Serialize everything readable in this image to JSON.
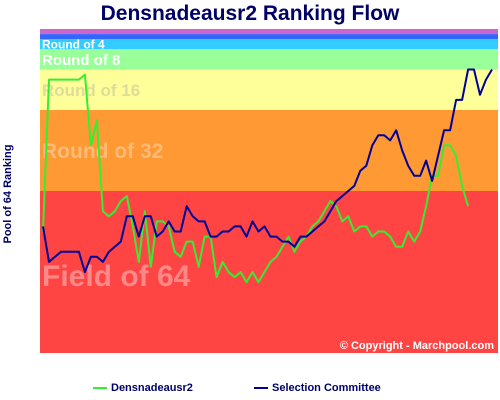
{
  "chart_data": {
    "type": "line",
    "title": "Densnadeausr2 Ranking Flow",
    "xlabel": "",
    "ylabel": "Pool of 64 Ranking",
    "ylim": [
      64,
      0
    ],
    "grid": false,
    "legend_placement": "bottom",
    "copyright": "© Copyright - Marchpool.com",
    "zones": [
      {
        "label": "Field of 64",
        "from": 32,
        "to": 64,
        "color": "#ff4444",
        "label_color": "#ff8888"
      },
      {
        "label": "Round of 32",
        "from": 16,
        "to": 32,
        "color": "#ff9933",
        "label_color": "#ffbb77"
      },
      {
        "label": "Round of 16",
        "from": 8,
        "to": 16,
        "color": "#ffff99",
        "label_color": "#dddd99"
      },
      {
        "label": "Round of 8",
        "from": 4,
        "to": 8,
        "color": "#99ff99",
        "label_color": "#ffffff"
      },
      {
        "label": "Round of 4",
        "from": 2,
        "to": 4,
        "color": "#33ccff",
        "label_color": "#ffffff"
      },
      {
        "label": "",
        "from": 1,
        "to": 2,
        "color": "#3366ff",
        "label_color": "#ffffff"
      },
      {
        "label": "",
        "from": 0,
        "to": 1,
        "color": "#cc66cc",
        "label_color": "#ffffff"
      }
    ],
    "series": [
      {
        "name": "Densnadeausr2",
        "color": "#33ee33",
        "values": [
          40,
          10,
          10,
          10,
          10,
          10,
          10,
          9,
          23,
          18,
          36,
          37,
          36,
          34,
          33,
          39,
          46,
          36,
          47,
          38,
          38,
          39,
          44,
          45,
          42,
          42,
          47,
          41,
          41,
          49,
          46,
          48,
          49,
          48,
          50,
          48,
          50,
          48,
          46,
          45,
          43,
          41,
          44,
          42,
          41,
          39,
          38,
          36,
          34,
          35,
          38,
          37,
          40,
          39,
          39,
          41,
          40,
          40,
          41,
          43,
          43,
          40,
          42,
          40,
          35,
          29,
          29,
          23,
          23,
          25,
          31,
          35
        ]
      },
      {
        "name": "Selection Committee",
        "color": "#000099",
        "values": [
          39,
          46,
          45,
          44,
          44,
          44,
          44,
          48,
          45,
          45,
          46,
          44,
          43,
          42,
          37,
          37,
          41,
          37,
          37,
          41,
          40,
          38,
          40,
          40,
          35,
          37,
          38,
          38,
          41,
          41,
          40,
          40,
          39,
          39,
          41,
          38,
          40,
          39,
          41,
          41,
          42,
          42,
          43,
          41,
          41,
          40,
          39,
          38,
          36,
          34,
          33,
          32,
          31,
          28,
          27,
          23,
          21,
          21,
          22,
          20,
          24,
          27,
          29,
          29,
          26,
          30,
          25,
          20,
          20,
          14,
          14,
          8,
          8,
          13,
          10,
          8
        ]
      }
    ]
  }
}
